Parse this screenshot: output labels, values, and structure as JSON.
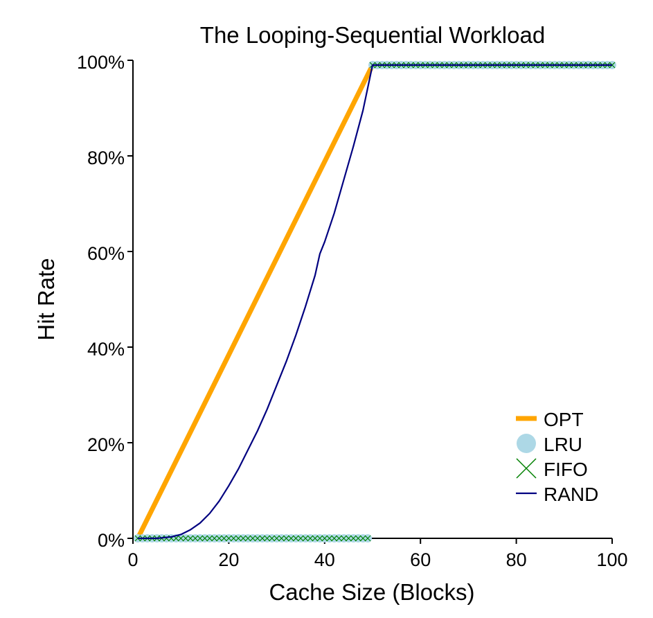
{
  "chart_data": {
    "type": "line",
    "title": "The Looping-Sequential Workload",
    "xlabel": "Cache Size (Blocks)",
    "ylabel": "Hit Rate",
    "xlim": [
      0,
      100
    ],
    "ylim": [
      0,
      100
    ],
    "xticks": [
      0,
      20,
      40,
      60,
      80,
      100
    ],
    "xtick_labels": [
      "0",
      "20",
      "40",
      "60",
      "80",
      "100"
    ],
    "yticks": [
      0,
      20,
      40,
      60,
      80,
      100
    ],
    "ytick_labels": [
      "0%",
      "20%",
      "40%",
      "60%",
      "80%",
      "100%"
    ],
    "grid": false,
    "legend_position": "bottom-right",
    "series": [
      {
        "name": "OPT",
        "style": "thick-line",
        "color": "#FFA500",
        "x": [
          1,
          50,
          100
        ],
        "y": [
          0,
          99,
          99
        ]
      },
      {
        "name": "LRU",
        "style": "circle-markers",
        "color": "#ADD8E6",
        "x": [
          1,
          49,
          50,
          100
        ],
        "y": [
          0,
          0,
          99,
          99
        ]
      },
      {
        "name": "FIFO",
        "style": "x-markers",
        "color": "#008000",
        "x": [
          1,
          49,
          50,
          100
        ],
        "y": [
          0,
          0,
          99,
          99
        ]
      },
      {
        "name": "RAND",
        "style": "thin-line",
        "color": "#000080",
        "x": [
          1,
          5,
          8,
          10,
          12,
          14,
          16,
          18,
          20,
          22,
          24,
          26,
          28,
          30,
          32,
          34,
          36,
          38,
          39,
          40,
          42,
          44,
          46,
          48,
          50,
          60,
          70,
          80,
          90,
          100
        ],
        "y": [
          0,
          0,
          0.3,
          0.8,
          1.8,
          3.2,
          5.2,
          7.8,
          11,
          14.5,
          18.5,
          22.5,
          27,
          32,
          37,
          42.5,
          48.5,
          55,
          59.5,
          62,
          68,
          75,
          82,
          89.5,
          99,
          99,
          99,
          99,
          99,
          99
        ]
      }
    ]
  }
}
